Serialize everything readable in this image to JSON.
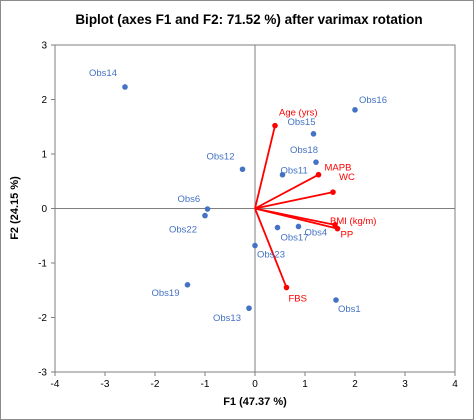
{
  "chart_data": {
    "type": "scatter",
    "title": "Biplot (axes F1 and F2: 71.52 %) after varimax rotation",
    "xlabel": "F1 (47.37 %)",
    "ylabel": "F2 (24.15 %)",
    "xlim": [
      -4,
      4
    ],
    "ylim": [
      -3,
      3
    ],
    "xticks": [
      -4,
      -3,
      -2,
      -1,
      0,
      1,
      2,
      3,
      4
    ],
    "yticks": [
      -3,
      -2,
      -1,
      0,
      1,
      2,
      3
    ],
    "grid": false,
    "colors": {
      "observations": "#4472c4",
      "variables": "#ff0000"
    },
    "observations": [
      {
        "name": "Obs14",
        "x": -2.6,
        "y": 2.23
      },
      {
        "name": "Obs16",
        "x": 2.0,
        "y": 1.81
      },
      {
        "name": "Obs15",
        "x": 1.17,
        "y": 1.37
      },
      {
        "name": "Obs18",
        "x": 1.22,
        "y": 0.85
      },
      {
        "name": "Obs12",
        "x": -0.25,
        "y": 0.72
      },
      {
        "name": "Obs11",
        "x": 0.55,
        "y": 0.62
      },
      {
        "name": "Obs6",
        "x": -0.95,
        "y": -0.01
      },
      {
        "name": "Obs22",
        "x": -1.0,
        "y": -0.13
      },
      {
        "name": "Obs17",
        "x": 0.45,
        "y": -0.35
      },
      {
        "name": "Obs4",
        "x": 0.87,
        "y": -0.33
      },
      {
        "name": "Obs23",
        "x": 0.0,
        "y": -0.68
      },
      {
        "name": "Obs19",
        "x": -1.35,
        "y": -1.4
      },
      {
        "name": "Obs13",
        "x": -0.12,
        "y": -1.83
      },
      {
        "name": "Obs1",
        "x": 1.62,
        "y": -1.68
      }
    ],
    "variables": [
      {
        "name": "Age (yrs)",
        "x": 0.4,
        "y": 1.52
      },
      {
        "name": "MAPB",
        "x": 1.27,
        "y": 0.62
      },
      {
        "name": "WC",
        "x": 1.56,
        "y": 0.3
      },
      {
        "name": "BMI (kg/m)",
        "x": 1.6,
        "y": -0.3
      },
      {
        "name": "PP",
        "x": 1.65,
        "y": -0.37
      },
      {
        "name": "FBS",
        "x": 0.63,
        "y": -1.45
      }
    ]
  }
}
